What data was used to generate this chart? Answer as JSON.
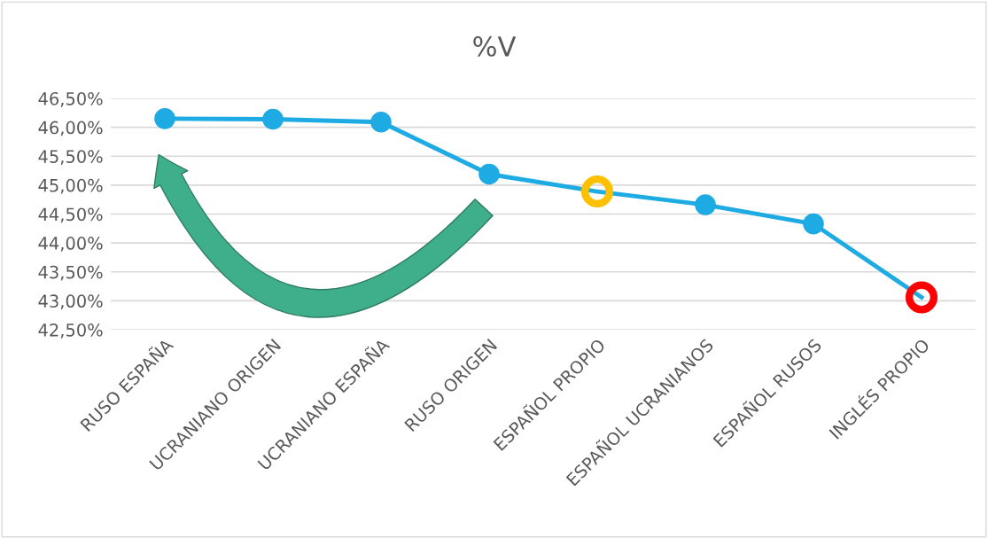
{
  "chart_data": {
    "type": "line",
    "title": "%V",
    "categories": [
      "RUSO ESPAÑA",
      "UCRANIANO ORIGEN",
      "UCRANIANO ESPAÑA",
      "RUSO ORIGEN",
      "ESPAÑOL PROPIO",
      "ESPAÑOL UCRANIANOS",
      "ESPAÑOL RUSOS",
      "INGLÉS PROPIO"
    ],
    "series": [
      {
        "color": "#1eaae2",
        "values": [
          46.15,
          46.14,
          46.09,
          45.19,
          44.89,
          44.66,
          44.33,
          43.06
        ],
        "colors": [
          "#1eaae2",
          "#1eaae2",
          "#1eaae2",
          "#1eaae2",
          "#ffc000",
          "#1eaae2",
          "#1eaae2",
          "#ff0000"
        ]
      }
    ],
    "ylim": [
      42.5,
      46.5
    ],
    "yticks": [
      {
        "value": 42.5,
        "label": "42,50%"
      },
      {
        "value": 43.0,
        "label": "43,00%"
      },
      {
        "value": 43.5,
        "label": "43,50%"
      },
      {
        "value": 44.0,
        "label": "44,00%"
      },
      {
        "value": 44.5,
        "label": "44,50%"
      },
      {
        "value": 45.0,
        "label": "45,00%"
      },
      {
        "value": 45.5,
        "label": "45,50%"
      },
      {
        "value": 46.0,
        "label": "46,00%"
      },
      {
        "value": 46.5,
        "label": "46,50%"
      }
    ],
    "grid": "y",
    "marker": "circle",
    "line_style": "solid",
    "legend": false
  }
}
